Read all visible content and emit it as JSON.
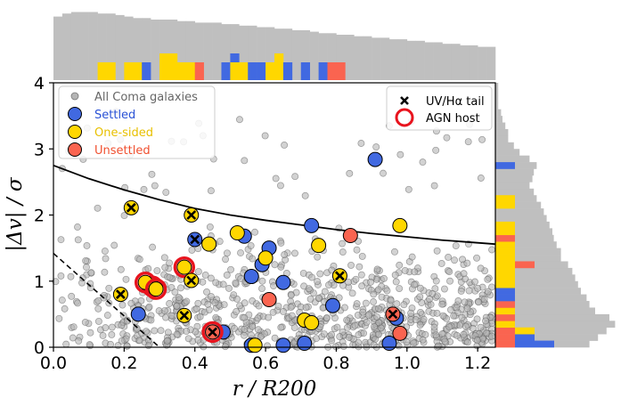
{
  "chart_data": {
    "type": "scatter",
    "xlabel": "r / R200",
    "ylabel": "|Δv| / σ",
    "xlim": [
      0,
      1.25
    ],
    "ylim": [
      0,
      4
    ],
    "xticks": [
      "0.0",
      "0.2",
      "0.4",
      "0.6",
      "0.8",
      "1.0",
      "1.2"
    ],
    "xtick_values": [
      0,
      0.2,
      0.4,
      0.6,
      0.8,
      1.0,
      1.2
    ],
    "yticks": [
      "0",
      "1",
      "2",
      "3",
      "4"
    ],
    "ytick_values": [
      0,
      1,
      2,
      3,
      4
    ],
    "legend_left": {
      "placement": "top-left",
      "entries": [
        {
          "label": "All Coma galaxies",
          "color": "#8c8c8c",
          "text_color": "#666666"
        },
        {
          "label": "Settled",
          "color": "#4169e1",
          "text_color": "#2a52d6"
        },
        {
          "label": "One-sided",
          "color": "#ffd700",
          "text_color": "#e8c000"
        },
        {
          "label": "Unsettled",
          "color": "#fa6450",
          "text_color": "#f05030"
        }
      ]
    },
    "legend_right": {
      "placement": "top-right",
      "entries": [
        {
          "label": "UV/Hα tail",
          "marker": "cross"
        },
        {
          "label": "AGN host",
          "marker": "red-ring"
        }
      ]
    },
    "colors": {
      "settled": "#4169e1",
      "one_sided": "#ffd700",
      "unsettled": "#fa6450",
      "background_points": "#b4b4b4",
      "agn_ring": "#e8141e",
      "histogram": "#bfbfbf"
    },
    "escape_curve": {
      "style": "solid",
      "x": [
        0.0,
        0.1,
        0.2,
        0.3,
        0.4,
        0.5,
        0.6,
        0.7,
        0.8,
        0.9,
        1.0,
        1.1,
        1.25
      ],
      "y": [
        2.75,
        2.55,
        2.38,
        2.23,
        2.1,
        2.0,
        1.92,
        1.85,
        1.78,
        1.72,
        1.67,
        1.62,
        1.56
      ]
    },
    "virial_line": {
      "style": "dashed",
      "x": [
        0.0,
        0.3
      ],
      "y": [
        1.42,
        0.0
      ]
    },
    "background_population": {
      "label": "All Coma galaxies",
      "count": 900
    },
    "series": [
      {
        "name": "Settled",
        "points": [
          {
            "x": 0.4,
            "y": 1.63,
            "tail": true,
            "agn": false
          },
          {
            "x": 0.54,
            "y": 1.68,
            "tail": false,
            "agn": false
          },
          {
            "x": 0.56,
            "y": 1.07,
            "tail": false,
            "agn": false
          },
          {
            "x": 0.59,
            "y": 1.25,
            "tail": false,
            "agn": false
          },
          {
            "x": 0.61,
            "y": 1.5,
            "tail": false,
            "agn": false
          },
          {
            "x": 0.65,
            "y": 0.98,
            "tail": false,
            "agn": false
          },
          {
            "x": 0.73,
            "y": 1.84,
            "tail": false,
            "agn": false
          },
          {
            "x": 0.79,
            "y": 0.63,
            "tail": false,
            "agn": false
          },
          {
            "x": 0.91,
            "y": 2.84,
            "tail": false,
            "agn": false
          },
          {
            "x": 0.48,
            "y": 0.23,
            "tail": false,
            "agn": false
          },
          {
            "x": 0.56,
            "y": 0.03,
            "tail": false,
            "agn": false
          },
          {
            "x": 0.65,
            "y": 0.03,
            "tail": false,
            "agn": false
          },
          {
            "x": 0.71,
            "y": 0.06,
            "tail": false,
            "agn": false
          },
          {
            "x": 0.95,
            "y": 0.06,
            "tail": false,
            "agn": false
          },
          {
            "x": 0.97,
            "y": 0.44,
            "tail": false,
            "agn": false
          },
          {
            "x": 0.24,
            "y": 0.5,
            "tail": false,
            "agn": false
          },
          {
            "x": 0.28,
            "y": 0.92,
            "tail": false,
            "agn": true
          }
        ]
      },
      {
        "name": "One-sided",
        "points": [
          {
            "x": 0.37,
            "y": 1.21,
            "tail": false,
            "agn": true
          },
          {
            "x": 0.26,
            "y": 0.98,
            "tail": false,
            "agn": true
          },
          {
            "x": 0.29,
            "y": 0.88,
            "tail": false,
            "agn": true
          },
          {
            "x": 0.19,
            "y": 0.8,
            "tail": true,
            "agn": false
          },
          {
            "x": 0.37,
            "y": 0.48,
            "tail": true,
            "agn": false
          },
          {
            "x": 0.39,
            "y": 1.01,
            "tail": true,
            "agn": false
          },
          {
            "x": 0.39,
            "y": 2.0,
            "tail": true,
            "agn": false
          },
          {
            "x": 0.22,
            "y": 2.11,
            "tail": true,
            "agn": false
          },
          {
            "x": 0.44,
            "y": 1.56,
            "tail": false,
            "agn": false
          },
          {
            "x": 0.52,
            "y": 1.73,
            "tail": false,
            "agn": false
          },
          {
            "x": 0.6,
            "y": 1.35,
            "tail": false,
            "agn": false
          },
          {
            "x": 0.75,
            "y": 1.54,
            "tail": false,
            "agn": false
          },
          {
            "x": 0.81,
            "y": 1.08,
            "tail": true,
            "agn": false
          },
          {
            "x": 0.71,
            "y": 0.41,
            "tail": false,
            "agn": false
          },
          {
            "x": 0.73,
            "y": 0.37,
            "tail": false,
            "agn": false
          },
          {
            "x": 0.57,
            "y": 0.03,
            "tail": false,
            "agn": false
          },
          {
            "x": 0.98,
            "y": 1.84,
            "tail": false,
            "agn": false
          }
        ]
      },
      {
        "name": "Unsettled",
        "points": [
          {
            "x": 0.45,
            "y": 0.23,
            "tail": true,
            "agn": true
          },
          {
            "x": 0.61,
            "y": 0.72,
            "tail": false,
            "agn": false
          },
          {
            "x": 0.84,
            "y": 1.69,
            "tail": false,
            "agn": false
          },
          {
            "x": 0.96,
            "y": 0.5,
            "tail": true,
            "agn": false
          },
          {
            "x": 0.98,
            "y": 0.21,
            "tail": false,
            "agn": false
          }
        ]
      }
    ],
    "top_histogram": {
      "all_counts": [
        42,
        44,
        45,
        45,
        45,
        44,
        44,
        43,
        42,
        41,
        41,
        40,
        40,
        40,
        39,
        39,
        38,
        38,
        38,
        37,
        37,
        36,
        36,
        35,
        35,
        34,
        34,
        33,
        33,
        32,
        31,
        31,
        30,
        30,
        29,
        29,
        28,
        28,
        27,
        27,
        26,
        26,
        25,
        25,
        24,
        24,
        23,
        23,
        22,
        22
      ],
      "colored_bars": [
        {
          "bin": 5,
          "segments": [
            {
              "cat": "One-sided",
              "count": 2
            }
          ]
        },
        {
          "bin": 6,
          "segments": [
            {
              "cat": "One-sided",
              "count": 2
            }
          ]
        },
        {
          "bin": 8,
          "segments": [
            {
              "cat": "One-sided",
              "count": 2
            }
          ]
        },
        {
          "bin": 9,
          "segments": [
            {
              "cat": "One-sided",
              "count": 2
            }
          ]
        },
        {
          "bin": 10,
          "segments": [
            {
              "cat": "Settled",
              "count": 2
            }
          ]
        },
        {
          "bin": 12,
          "segments": [
            {
              "cat": "One-sided",
              "count": 3
            }
          ]
        },
        {
          "bin": 13,
          "segments": [
            {
              "cat": "One-sided",
              "count": 3
            }
          ]
        },
        {
          "bin": 14,
          "segments": [
            {
              "cat": "One-sided",
              "count": 2
            }
          ]
        },
        {
          "bin": 15,
          "segments": [
            {
              "cat": "One-sided",
              "count": 2
            }
          ]
        },
        {
          "bin": 16,
          "segments": [
            {
              "cat": "Unsettled",
              "count": 2
            }
          ]
        },
        {
          "bin": 19,
          "segments": [
            {
              "cat": "Settled",
              "count": 2
            }
          ]
        },
        {
          "bin": 20,
          "segments": [
            {
              "cat": "One-sided",
              "count": 2
            },
            {
              "cat": "Settled",
              "count": 1
            }
          ]
        },
        {
          "bin": 21,
          "segments": [
            {
              "cat": "One-sided",
              "count": 2
            }
          ]
        },
        {
          "bin": 22,
          "segments": [
            {
              "cat": "Settled",
              "count": 2
            }
          ]
        },
        {
          "bin": 23,
          "segments": [
            {
              "cat": "Settled",
              "count": 2
            }
          ]
        },
        {
          "bin": 24,
          "segments": [
            {
              "cat": "One-sided",
              "count": 2
            }
          ]
        },
        {
          "bin": 25,
          "segments": [
            {
              "cat": "One-sided",
              "count": 3
            }
          ]
        },
        {
          "bin": 26,
          "segments": [
            {
              "cat": "Settled",
              "count": 2
            }
          ]
        },
        {
          "bin": 28,
          "segments": [
            {
              "cat": "Settled",
              "count": 2
            }
          ]
        },
        {
          "bin": 30,
          "segments": [
            {
              "cat": "Settled",
              "count": 2
            }
          ]
        },
        {
          "bin": 31,
          "segments": [
            {
              "cat": "Unsettled",
              "count": 2
            }
          ]
        },
        {
          "bin": 32,
          "segments": [
            {
              "cat": "Unsettled",
              "count": 2
            }
          ]
        }
      ]
    },
    "right_histogram": {
      "all_counts": [
        6.6,
        7.2,
        7.8,
        8.4,
        8.0,
        7.0,
        6.6,
        6.4,
        6.0,
        5.8,
        5.6,
        5.4,
        5.1,
        4.6,
        4.6,
        4.3,
        4.1,
        4.0,
        3.8,
        3.6,
        3.4,
        3.2,
        2.9,
        2.7,
        2.4,
        2.6,
        2.7,
        2.9,
        2.4,
        1.7,
        1.3,
        0.9,
        0.9,
        0.7,
        0.5,
        0.4,
        0.2,
        0.2,
        0.2,
        0.2
      ],
      "colored_bars": [
        {
          "bin": 0,
          "segments": [
            {
              "cat": "Unsettled",
              "count": 1
            },
            {
              "cat": "Settled",
              "count": 2
            }
          ]
        },
        {
          "bin": 1,
          "segments": [
            {
              "cat": "Unsettled",
              "count": 1
            },
            {
              "cat": "Settled",
              "count": 1
            }
          ]
        },
        {
          "bin": 2,
          "segments": [
            {
              "cat": "Unsettled",
              "count": 1
            },
            {
              "cat": "One-sided",
              "count": 1
            }
          ]
        },
        {
          "bin": 3,
          "segments": [
            {
              "cat": "One-sided",
              "count": 1
            }
          ]
        },
        {
          "bin": 4,
          "segments": [
            {
              "cat": "Unsettled",
              "count": 1
            }
          ]
        },
        {
          "bin": 5,
          "segments": [
            {
              "cat": "One-sided",
              "count": 1
            }
          ]
        },
        {
          "bin": 6,
          "segments": [
            {
              "cat": "Unsettled",
              "count": 1
            }
          ]
        },
        {
          "bin": 7,
          "segments": [
            {
              "cat": "Settled",
              "count": 1
            }
          ]
        },
        {
          "bin": 8,
          "segments": [
            {
              "cat": "Settled",
              "count": 1
            }
          ]
        },
        {
          "bin": 9,
          "segments": [
            {
              "cat": "One-sided",
              "count": 1
            }
          ]
        },
        {
          "bin": 10,
          "segments": [
            {
              "cat": "One-sided",
              "count": 1
            }
          ]
        },
        {
          "bin": 11,
          "segments": [
            {
              "cat": "One-sided",
              "count": 1
            }
          ]
        },
        {
          "bin": 12,
          "segments": [
            {
              "cat": "One-sided",
              "count": 1
            },
            {
              "cat": "Unsettled",
              "count": 1
            }
          ]
        },
        {
          "bin": 13,
          "segments": [
            {
              "cat": "One-sided",
              "count": 1
            }
          ]
        },
        {
          "bin": 14,
          "segments": [
            {
              "cat": "One-sided",
              "count": 1
            }
          ]
        },
        {
          "bin": 15,
          "segments": [
            {
              "cat": "One-sided",
              "count": 1
            }
          ]
        },
        {
          "bin": 16,
          "segments": [
            {
              "cat": "Unsettled",
              "count": 1
            }
          ]
        },
        {
          "bin": 17,
          "segments": [
            {
              "cat": "One-sided",
              "count": 1
            }
          ]
        },
        {
          "bin": 18,
          "segments": [
            {
              "cat": "One-sided",
              "count": 1
            }
          ]
        },
        {
          "bin": 21,
          "segments": [
            {
              "cat": "One-sided",
              "count": 1
            }
          ]
        },
        {
          "bin": 22,
          "segments": [
            {
              "cat": "One-sided",
              "count": 1
            }
          ]
        },
        {
          "bin": 27,
          "segments": [
            {
              "cat": "Settled",
              "count": 1
            }
          ]
        }
      ]
    }
  }
}
